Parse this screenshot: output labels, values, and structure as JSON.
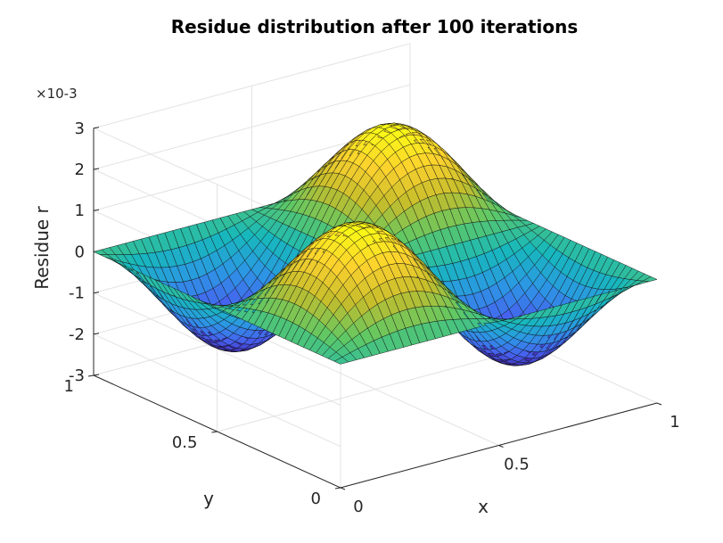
{
  "chart_data": {
    "type": "surface3d",
    "title": "Residue distribution after 100 iterations",
    "xlabel": "x",
    "ylabel": "y",
    "zlabel": "Residue r",
    "z_exponent_label": "×10-3",
    "xlim": [
      0,
      1
    ],
    "ylim": [
      0,
      1
    ],
    "zlim": [
      -3,
      3
    ],
    "z_scale": 0.001,
    "x_ticks": [
      0,
      0.5,
      1
    ],
    "y_ticks": [
      0,
      0.5,
      1
    ],
    "z_ticks": [
      -3,
      -2,
      -1,
      0,
      1,
      2,
      3
    ],
    "x_tick_labels": [
      "0",
      "0.5",
      "1"
    ],
    "y_tick_labels": [
      "0",
      "0.5",
      "1"
    ],
    "z_tick_labels": [
      "-3",
      "-2",
      "-1",
      "0",
      "1",
      "2",
      "3"
    ],
    "surface": {
      "function": "r(x,y) = amplitude * sin(2*pi*x) * sin(2*pi*y)",
      "amplitude": 0.0022,
      "grid_x_count": 41,
      "grid_y_count": 41
    },
    "colormap": "parula",
    "colormap_stops": [
      "#3e26a8",
      "#4760ef",
      "#2c97e4",
      "#17b8bc",
      "#5ec865",
      "#c4bd2c",
      "#fcd12e",
      "#f9fb15"
    ],
    "grid": true
  }
}
